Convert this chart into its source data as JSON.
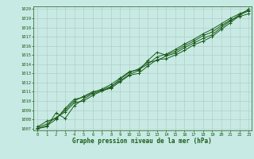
{
  "title": "Graphe pression niveau de la mer (hPa)",
  "xlabel": "Graphe pression niveau de la mer (hPa)",
  "ylabel": "",
  "xlim": [
    -0.5,
    23.3
  ],
  "ylim": [
    1006.8,
    1020.3
  ],
  "yticks": [
    1007,
    1008,
    1009,
    1010,
    1011,
    1012,
    1013,
    1014,
    1015,
    1016,
    1017,
    1018,
    1019,
    1020
  ],
  "xticks": [
    0,
    1,
    2,
    3,
    4,
    5,
    6,
    7,
    8,
    9,
    10,
    11,
    12,
    13,
    14,
    15,
    16,
    17,
    18,
    19,
    20,
    21,
    22,
    23
  ],
  "bg_color": "#c8eae4",
  "grid_color": "#b8ccc8",
  "line_color": "#1a5c1a",
  "lines": [
    [
      1007.0,
      1007.2,
      1008.7,
      1008.1,
      1009.5,
      1010.2,
      1010.8,
      1011.1,
      1011.4,
      1012.1,
      1012.8,
      1013.0,
      1013.8,
      1014.5,
      1014.6,
      1015.0,
      1015.5,
      1016.1,
      1016.5,
      1017.0,
      1017.8,
      1018.5,
      1019.3,
      1020.0
    ],
    [
      1007.1,
      1007.5,
      1008.2,
      1008.8,
      1009.8,
      1010.0,
      1010.6,
      1011.1,
      1011.5,
      1012.4,
      1013.1,
      1013.5,
      1014.2,
      1014.4,
      1014.9,
      1015.2,
      1015.8,
      1016.3,
      1016.8,
      1017.2,
      1018.0,
      1018.7,
      1019.4,
      1019.8
    ],
    [
      1007.2,
      1007.8,
      1008.1,
      1009.0,
      1010.0,
      1010.5,
      1011.0,
      1011.2,
      1011.6,
      1012.2,
      1012.9,
      1013.3,
      1014.4,
      1015.3,
      1015.0,
      1015.4,
      1016.0,
      1016.5,
      1017.1,
      1017.5,
      1018.2,
      1018.8,
      1019.2,
      1019.5
    ],
    [
      1007.0,
      1007.3,
      1008.0,
      1009.2,
      1010.2,
      1010.4,
      1010.9,
      1011.3,
      1011.8,
      1012.5,
      1013.2,
      1013.4,
      1014.0,
      1014.8,
      1015.1,
      1015.6,
      1016.2,
      1016.7,
      1017.3,
      1017.8,
      1018.4,
      1019.0,
      1019.5,
      1019.9
    ]
  ],
  "fig_width": 3.2,
  "fig_height": 2.0,
  "dpi": 100
}
